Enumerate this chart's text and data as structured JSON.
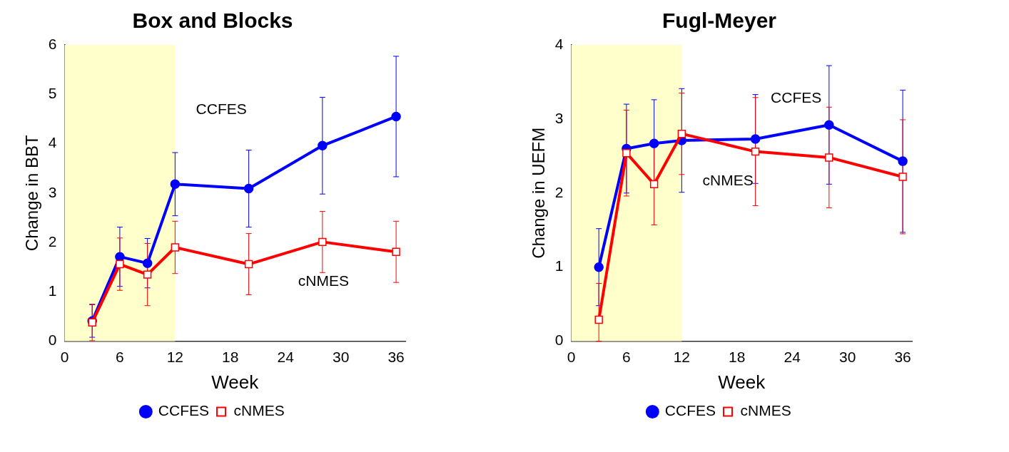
{
  "chart_data": [
    {
      "type": "line",
      "title": "Box and Blocks",
      "xlabel": "Week",
      "ylabel": "Change in BBT",
      "x": [
        3,
        6,
        9,
        12,
        20,
        28,
        36
      ],
      "xlim": [
        0,
        37
      ],
      "xticks": [
        0,
        6,
        12,
        18,
        24,
        30,
        36
      ],
      "ylim": [
        0,
        6
      ],
      "yticks": [
        0,
        1,
        2,
        3,
        4,
        5,
        6
      ],
      "grid": false,
      "legend": "bottom",
      "bands": [
        {
          "axis": "x",
          "from": 0,
          "to": 12,
          "color": "#ffffcc"
        }
      ],
      "annotations": [
        "CCFES",
        "cNMES"
      ],
      "series": [
        {
          "name": "CCFES",
          "color": "#0000ff",
          "marker": "circle",
          "values": [
            0.41,
            1.71,
            1.58,
            3.18,
            3.09,
            3.96,
            4.55
          ],
          "errors": [
            0.33,
            0.6,
            0.5,
            0.64,
            0.78,
            0.98,
            1.22
          ]
        },
        {
          "name": "cNMES",
          "color": "#ff0000",
          "marker": "square",
          "values": [
            0.38,
            1.56,
            1.35,
            1.9,
            1.56,
            2.01,
            1.81
          ],
          "errors": [
            0.37,
            0.53,
            0.63,
            0.53,
            0.62,
            0.62,
            0.62
          ]
        }
      ]
    },
    {
      "type": "line",
      "title": "Fugl-Meyer",
      "xlabel": "Week",
      "ylabel": "Change in UEFM",
      "x": [
        3,
        6,
        9,
        12,
        20,
        28,
        36
      ],
      "xlim": [
        0,
        37
      ],
      "xticks": [
        0,
        6,
        12,
        18,
        24,
        30,
        36
      ],
      "ylim": [
        0,
        4
      ],
      "yticks": [
        0,
        1,
        2,
        3,
        4
      ],
      "grid": false,
      "legend": "bottom",
      "bands": [
        {
          "axis": "x",
          "from": 0,
          "to": 12,
          "color": "#ffffcc"
        }
      ],
      "annotations": [
        "CCFES",
        "cNMES"
      ],
      "series": [
        {
          "name": "CCFES",
          "color": "#0000ff",
          "marker": "circle",
          "values": [
            1.0,
            2.6,
            2.67,
            2.71,
            2.73,
            2.92,
            2.43
          ],
          "errors": [
            0.52,
            0.6,
            0.59,
            0.7,
            0.6,
            0.8,
            0.96
          ]
        },
        {
          "name": "cNMES",
          "color": "#ff0000",
          "marker": "square",
          "values": [
            0.29,
            2.54,
            2.12,
            2.8,
            2.56,
            2.48,
            2.22
          ],
          "errors": [
            [
              0,
              0.78
            ],
            0.58,
            0.55,
            0.55,
            0.73,
            0.68,
            0.77
          ]
        }
      ]
    }
  ]
}
